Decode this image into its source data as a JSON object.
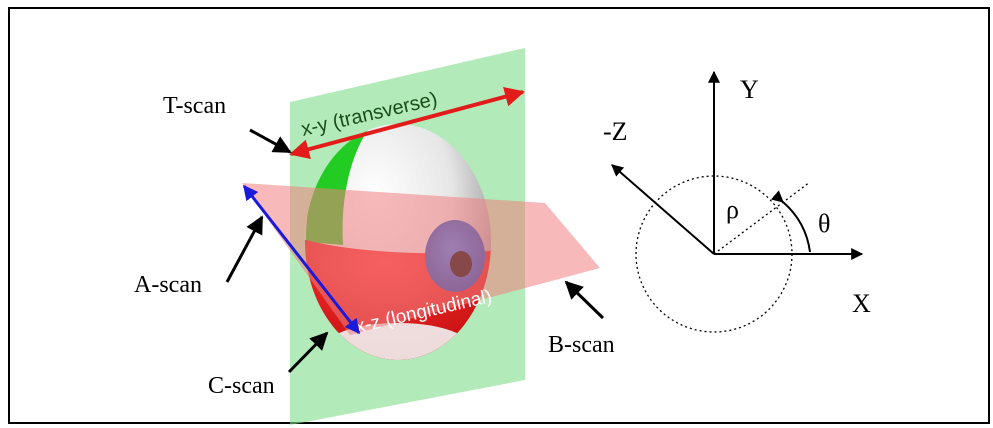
{
  "scan_labels": {
    "t_scan": "T-scan",
    "a_scan": "A-scan",
    "b_scan": "B-scan",
    "c_scan": "C-scan"
  },
  "plane_labels": {
    "transverse": "x-y (transverse)",
    "longitudinal": "x-z (longitudinal)"
  },
  "axis_labels": {
    "y": "Y",
    "x": "X",
    "neg_z": "-Z",
    "rho": "ρ",
    "theta": "θ"
  },
  "colors": {
    "transverse_plane": "#7fdc8a",
    "longitudinal_plane": "#f08080",
    "t_scan_arrow": "#e31b1b",
    "a_scan_arrow": "#1a1adb",
    "iris": "#1f5fd6",
    "sclera_red": "#e01818",
    "sclera_green": "#22cc22",
    "frame": "#000000"
  },
  "icons": {
    "eyeball": "eyeball-sphere-icon"
  }
}
